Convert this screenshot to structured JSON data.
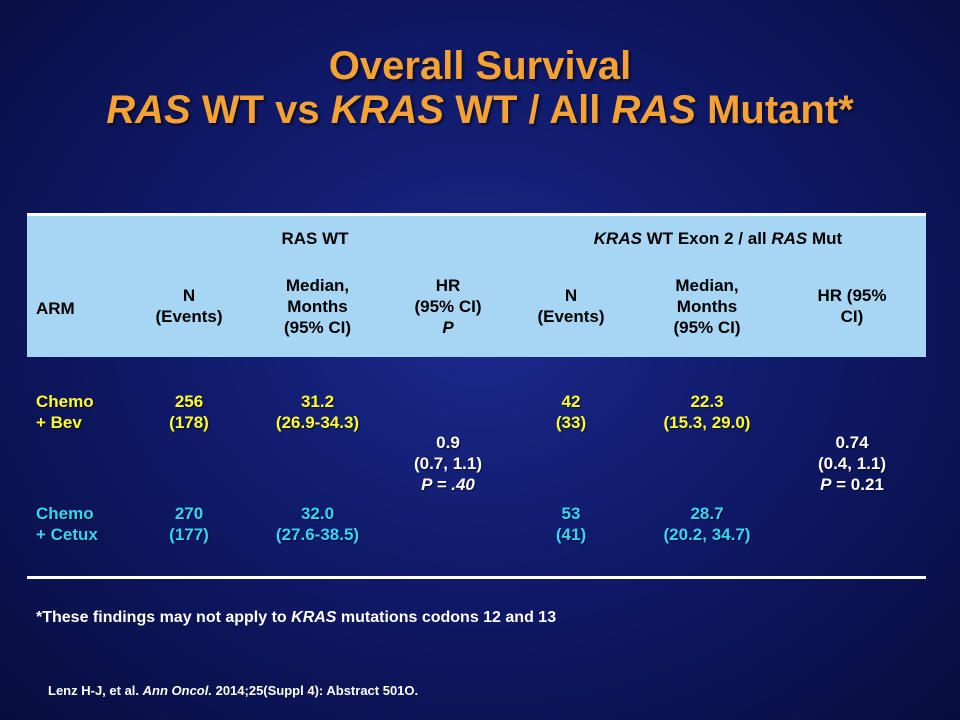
{
  "title": {
    "line1": "Overall Survival",
    "line2_part1": "RAS",
    "line2_part2": " WT vs ",
    "line2_part3": "KRAS",
    "line2_part4": " WT / All ",
    "line2_part5": "RAS",
    "line2_part6": " Mutant*"
  },
  "table": {
    "group_left": "RAS WT",
    "group_right_part1": "KRAS",
    "group_right_part2": " WT Exon 2 / all ",
    "group_right_part3": "RAS",
    "group_right_part4": " Mut",
    "col_arm": "ARM",
    "col_n_1": "N",
    "col_n_2": "(Events)",
    "col_median_1": "Median,",
    "col_median_2": "Months",
    "col_median_3": "(95% CI)",
    "col_hr_1": "HR",
    "col_hr_2": "(95% CI)",
    "col_hr_3": "P",
    "col_n2_1": "N",
    "col_n2_2": "(Events)",
    "col_median2_1": "Median,",
    "col_median2_2": "Months",
    "col_median2_3": "(95% CI)",
    "col_hr2_1": "HR (95%",
    "col_hr2_2": "CI)",
    "rows": [
      {
        "arm_1": "Chemo",
        "arm_2": "+ Bev",
        "n_1": "256",
        "n_2": "(178)",
        "median_1": "31.2",
        "median_2": "(26.9-34.3)",
        "n2_1": "42",
        "n2_2": "(33)",
        "median2_1": "22.3",
        "median2_2": "(15.3, 29.0)",
        "color": "#ffff2a"
      },
      {
        "arm_1": "Chemo",
        "arm_2": "+ Cetux",
        "n_1": "270",
        "n_2": "(177)",
        "median_1": "32.0",
        "median_2": "(27.6-38.5)",
        "n2_1": "53",
        "n2_2": "(41)",
        "median2_1": "28.7",
        "median2_2": "(20.2, 34.7)",
        "color": "#35d5f5"
      }
    ],
    "hr_left_1": "0.9",
    "hr_left_2": "(0.7, 1.1)",
    "hr_left_p": "P = .40",
    "hr_right_1": "0.74",
    "hr_right_2": "(0.4, 1.1)",
    "hr_right_p_label": "P",
    "hr_right_p_value": " = 0.21"
  },
  "footnote": {
    "part1": "*These findings may not apply to ",
    "part2": "KRAS",
    "part3": " mutations codons 12 and 13"
  },
  "citation": {
    "part1": "Lenz H-J, et al. ",
    "part2": "Ann Oncol.",
    "part3": " 2014;25(Suppl 4): Abstract 501O."
  },
  "colors": {
    "title": "#f5a232",
    "header_bg": "#a7d6f5",
    "row1": "#ffff2a",
    "row2": "#35d5f5"
  }
}
